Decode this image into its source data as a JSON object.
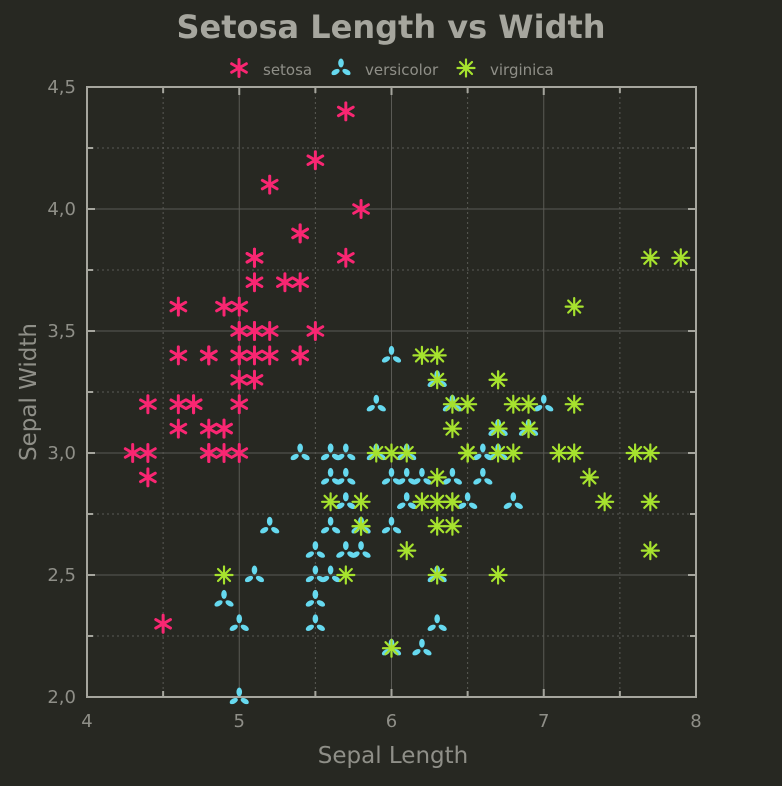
{
  "chart_data": {
    "type": "scatter",
    "title": "Setosa Length vs Width",
    "xlabel": "Sepal Length",
    "ylabel": "Sepal Width",
    "xlim": [
      4,
      8
    ],
    "ylim": [
      2.0,
      4.5
    ],
    "xticks": [
      "4",
      "5",
      "6",
      "7",
      "8"
    ],
    "yticks": [
      "2,0",
      "2,5",
      "3,0",
      "3,5",
      "4,0",
      "4,5"
    ],
    "grid": true,
    "legend": "top",
    "colors": {
      "background": "#272822",
      "setosa": "#F92672",
      "versicolor": "#66D9EF",
      "virginica": "#A6E22E"
    },
    "series": [
      {
        "name": "setosa",
        "marker": "asterisk-6",
        "x": [
          5.1,
          4.9,
          4.7,
          4.6,
          5.0,
          5.4,
          4.6,
          5.0,
          4.4,
          4.9,
          5.4,
          4.8,
          4.8,
          4.3,
          5.8,
          5.7,
          5.4,
          5.1,
          5.7,
          5.1,
          5.4,
          5.1,
          4.6,
          5.1,
          4.8,
          5.0,
          5.0,
          5.2,
          5.2,
          4.7,
          4.8,
          5.4,
          5.2,
          5.5,
          4.9,
          5.0,
          5.5,
          4.9,
          4.4,
          5.1,
          5.0,
          4.5,
          4.4,
          5.0,
          5.1,
          4.8,
          5.1,
          4.6,
          5.3,
          5.0
        ],
        "y": [
          3.5,
          3.0,
          3.2,
          3.1,
          3.6,
          3.9,
          3.4,
          3.4,
          2.9,
          3.1,
          3.7,
          3.4,
          3.0,
          3.0,
          4.0,
          4.4,
          3.9,
          3.5,
          3.8,
          3.8,
          3.4,
          3.7,
          3.6,
          3.3,
          3.4,
          3.0,
          3.4,
          3.5,
          3.4,
          3.2,
          3.1,
          3.4,
          4.1,
          4.2,
          3.1,
          3.2,
          3.5,
          3.6,
          3.0,
          3.4,
          3.5,
          2.3,
          3.2,
          3.5,
          3.8,
          3.0,
          3.8,
          3.2,
          3.7,
          3.3
        ]
      },
      {
        "name": "versicolor",
        "marker": "tri-leaf",
        "x": [
          7.0,
          6.4,
          6.9,
          5.5,
          6.5,
          5.7,
          6.3,
          4.9,
          6.6,
          5.2,
          5.0,
          5.9,
          6.0,
          6.1,
          5.6,
          6.7,
          5.6,
          5.8,
          6.2,
          5.6,
          5.9,
          6.1,
          6.3,
          6.1,
          6.4,
          6.6,
          6.8,
          6.7,
          6.0,
          5.7,
          5.5,
          5.5,
          5.8,
          6.0,
          5.4,
          6.0,
          6.7,
          6.3,
          5.6,
          5.5,
          5.5,
          6.1,
          5.8,
          5.0,
          5.6,
          5.7,
          5.7,
          6.2,
          5.1,
          5.7
        ],
        "y": [
          3.2,
          3.2,
          3.1,
          2.3,
          2.8,
          2.8,
          3.3,
          2.4,
          2.9,
          2.7,
          2.0,
          3.0,
          2.2,
          2.9,
          2.9,
          3.1,
          3.0,
          2.7,
          2.2,
          2.5,
          3.2,
          2.8,
          2.5,
          2.8,
          2.9,
          3.0,
          2.8,
          3.0,
          2.9,
          2.6,
          2.4,
          2.4,
          2.7,
          2.7,
          3.0,
          3.4,
          3.1,
          2.3,
          3.0,
          2.5,
          2.6,
          3.0,
          2.6,
          2.3,
          2.7,
          3.0,
          2.9,
          2.9,
          2.5,
          2.8
        ]
      },
      {
        "name": "virginica",
        "marker": "asterisk-8",
        "x": [
          6.3,
          5.8,
          7.1,
          6.3,
          6.5,
          7.6,
          4.9,
          7.3,
          6.7,
          7.2,
          6.5,
          6.4,
          6.8,
          5.7,
          5.8,
          6.4,
          6.5,
          7.7,
          7.7,
          6.0,
          6.9,
          5.6,
          7.7,
          6.3,
          6.7,
          7.2,
          6.2,
          6.1,
          6.4,
          7.2,
          7.4,
          7.9,
          6.4,
          6.3,
          6.1,
          7.7,
          6.3,
          6.4,
          6.0,
          6.9,
          6.7,
          6.9,
          5.8,
          6.8,
          6.7,
          6.7,
          6.3,
          6.5,
          6.2,
          5.9
        ],
        "y": [
          3.3,
          2.7,
          3.0,
          2.9,
          3.0,
          3.0,
          2.5,
          2.9,
          2.5,
          3.6,
          3.2,
          2.7,
          3.0,
          2.5,
          2.8,
          3.2,
          3.0,
          3.8,
          2.6,
          2.2,
          3.2,
          2.8,
          2.8,
          2.7,
          3.3,
          3.2,
          2.8,
          3.0,
          2.8,
          3.0,
          2.8,
          3.8,
          2.8,
          2.8,
          2.6,
          3.0,
          3.4,
          3.1,
          3.0,
          3.1,
          3.1,
          3.1,
          2.7,
          3.2,
          3.3,
          3.0,
          2.5,
          3.0,
          3.4,
          3.0
        ]
      }
    ]
  }
}
